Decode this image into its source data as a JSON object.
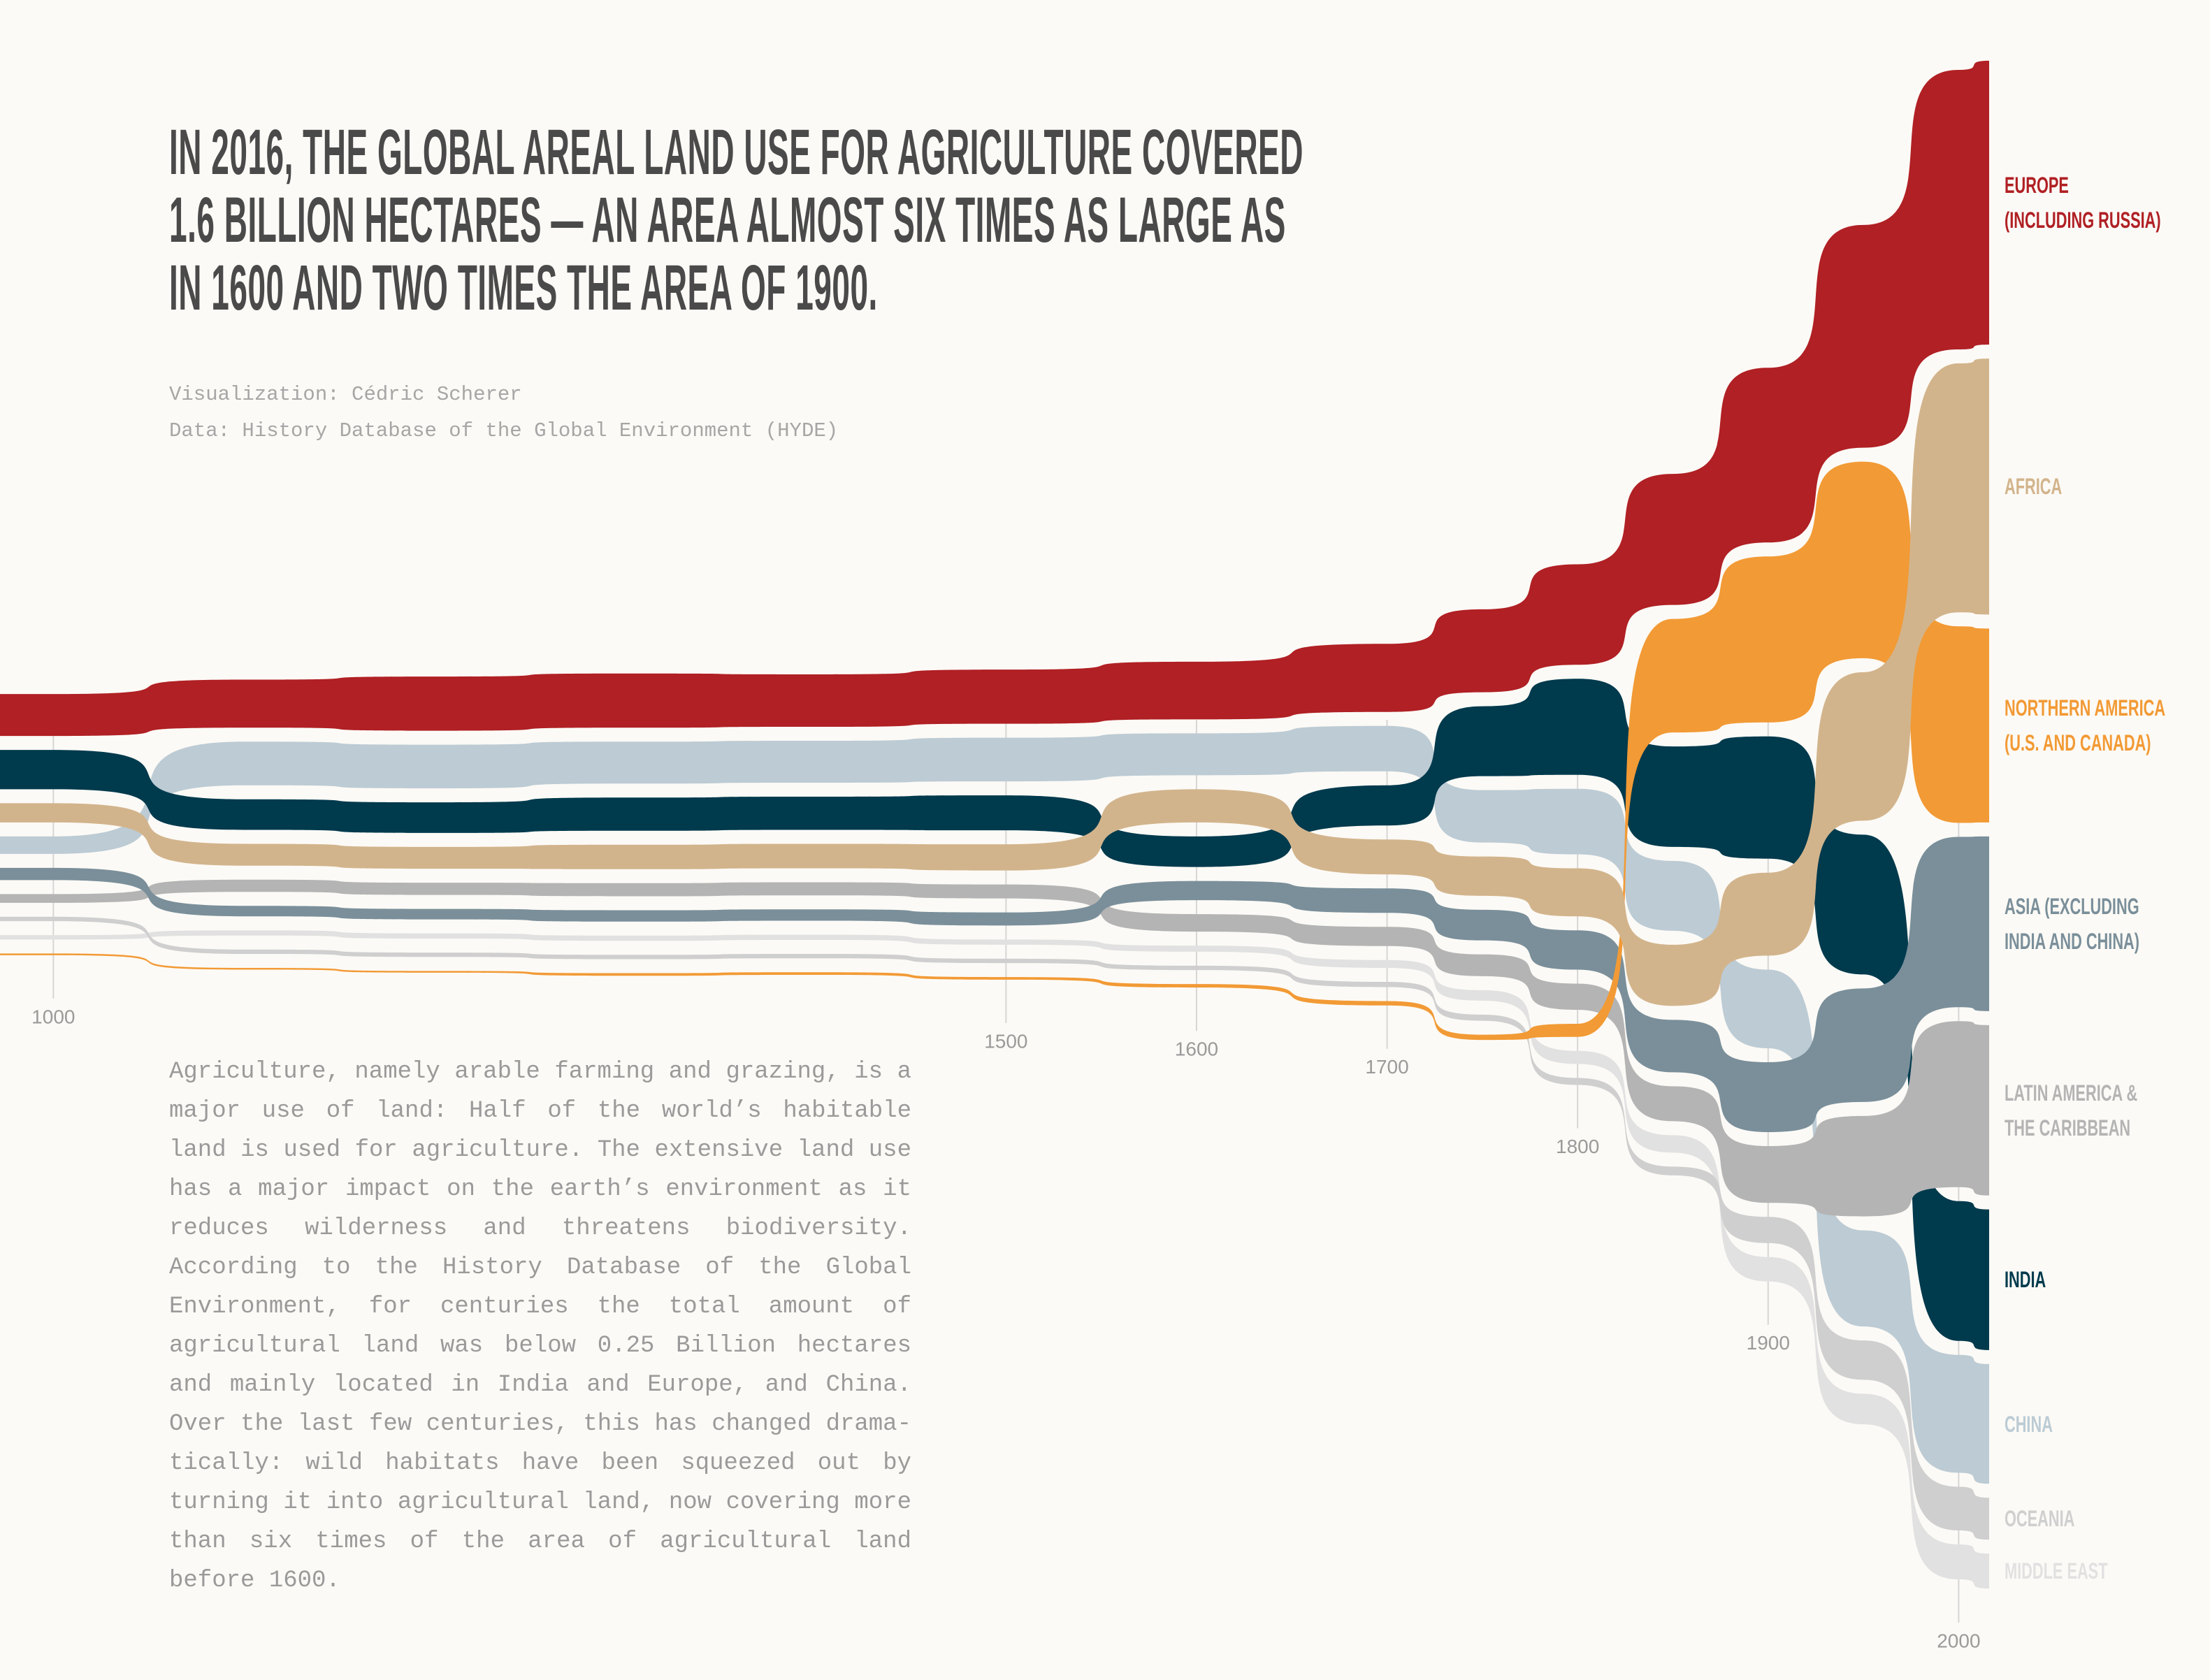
{
  "chart_data": {
    "type": "ranked-stream",
    "title": "IN 2016, THE GLOBAL AREAL LAND USE FOR AGRICULTURE COVERED\n1.6 BILLION HECTARES — AN AREA ALMOST SIX TIMES AS LARGE AS\nIN 1600 AND TWO TIMES THE AREA OF 1900.",
    "credits": [
      "Visualization: Cédric Scherer",
      "Data: History Database of the Global Environment (HYDE)"
    ],
    "description": "Agriculture, namely arable farming and grazing, is a major use of land: Half of the world’s habitable land is used for agriculture. The extensive land use has a major impact on the earth’s environment as it reduces wilderness and threatens biodiversity. According to the History Database of the Global Environment, for centuries the total amount of agricultural land was below 0.25 Billion hectares and mainly located in India and Europe, and China. Over the last few centuries, this has changed drama­tically: wild habitats have been squeezed out by turning it into agricultural land, now covering more than six times of the area of agricultural land before 1600.",
    "x": [
      1000,
      1100,
      1200,
      1300,
      1400,
      1500,
      1600,
      1700,
      1750,
      1800,
      1850,
      1900,
      1950,
      2000,
      2016
    ],
    "xlim": [
      972,
      2016
    ],
    "xticks": [
      1000,
      1500,
      1600,
      1700,
      1800,
      1900,
      2000
    ],
    "series": [
      {
        "name": "EUROPE\n(INCLUDING RUSSIA)",
        "color": "#b02024",
        "values": [
          48,
          55,
          62,
          62,
          60,
          62,
          66,
          78,
          95,
          115,
          150,
          200,
          255,
          320,
          325
        ]
      },
      {
        "name": "AFRICA",
        "color": "#d2b48c",
        "values": [
          22,
          25,
          25,
          28,
          28,
          30,
          38,
          40,
          45,
          55,
          70,
          95,
          170,
          285,
          293
        ]
      },
      {
        "name": "NORTHERN AMERICA\n(U.S. AND CANADA)",
        "color": "#f29a35",
        "values": [
          2,
          2,
          2,
          3,
          3,
          3,
          4,
          5,
          6,
          15,
          130,
          190,
          225,
          225,
          222
        ]
      },
      {
        "name": "ASIA (EXCLUDING\nINDIA AND CHINA)",
        "color": "#7a8f9a",
        "values": [
          14,
          12,
          12,
          13,
          13,
          15,
          22,
          28,
          35,
          45,
          60,
          80,
          130,
          195,
          200
        ]
      },
      {
        "name": "LATIN AMERICA &\nTHE CARIBBEAN",
        "color": "#b4b4b4",
        "values": [
          10,
          14,
          14,
          15,
          15,
          16,
          20,
          22,
          25,
          30,
          40,
          65,
          115,
          190,
          195
        ]
      },
      {
        "name": "INDIA",
        "color": "#003a4d",
        "values": [
          45,
          35,
          35,
          38,
          38,
          40,
          35,
          46,
          80,
          110,
          115,
          140,
          160,
          160,
          161
        ]
      },
      {
        "name": "CHINA",
        "color": "#bccbd4",
        "values": [
          20,
          50,
          50,
          48,
          48,
          50,
          48,
          52,
          60,
          75,
          80,
          90,
          110,
          135,
          137
        ]
      },
      {
        "name": "OCEANIA",
        "color": "#cfcfcf",
        "values": [
          5,
          5,
          5,
          5,
          5,
          5,
          5,
          6,
          7,
          8,
          10,
          30,
          45,
          50,
          48
        ]
      },
      {
        "name": "MIDDLE EAST",
        "color": "#e1e1e1",
        "values": [
          5,
          6,
          6,
          6,
          6,
          6,
          7,
          9,
          12,
          15,
          20,
          28,
          35,
          40,
          40
        ]
      }
    ]
  }
}
